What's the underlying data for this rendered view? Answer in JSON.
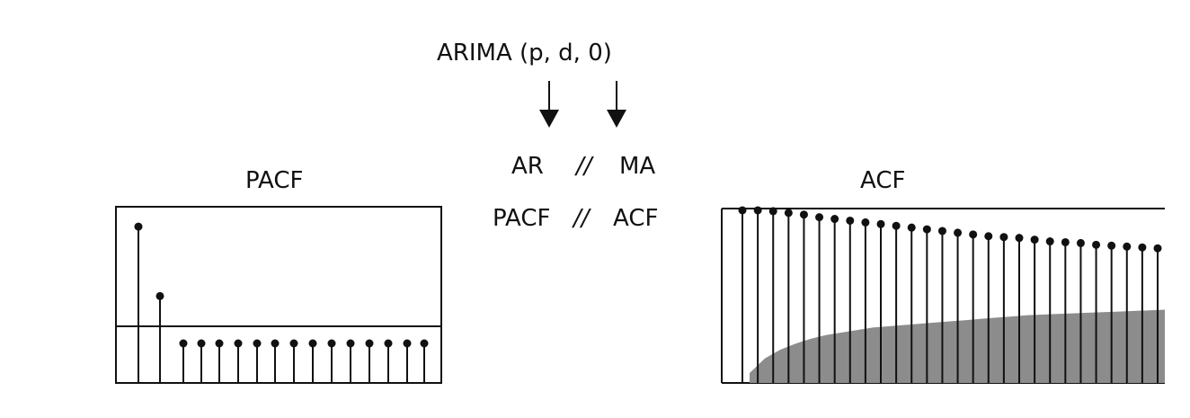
{
  "header": {
    "formula": "ARIMA (p, d, 0)"
  },
  "mapping": {
    "row1": {
      "left": "AR",
      "sep": "//",
      "right": "MA"
    },
    "row2": {
      "left": "PACF",
      "sep": "//",
      "right": "ACF"
    }
  },
  "chart_data": [
    {
      "type": "stem",
      "title": "PACF",
      "lags": [
        1,
        2,
        3,
        4,
        5,
        6,
        7,
        8,
        9,
        10,
        11,
        12,
        13,
        14,
        15
      ],
      "values": [
        0.84,
        0.28,
        -0.03,
        -0.03,
        -0.03,
        -0.03,
        -0.03,
        -0.03,
        -0.03,
        -0.03,
        -0.03,
        -0.03,
        -0.03,
        -0.03,
        -0.03
      ],
      "threshold": 0.0,
      "ylim": [
        -0.42,
        1.0
      ]
    },
    {
      "type": "stem",
      "title": "ACF",
      "lags": [
        1,
        2,
        3,
        4,
        5,
        6,
        7,
        8,
        9,
        10,
        11,
        12,
        13,
        14,
        15,
        16,
        17,
        18,
        19,
        20,
        21,
        22,
        23,
        24,
        25,
        26,
        27,
        28
      ],
      "values": [
        1.0,
        1.0,
        0.995,
        0.985,
        0.975,
        0.96,
        0.95,
        0.94,
        0.93,
        0.92,
        0.91,
        0.9,
        0.89,
        0.88,
        0.87,
        0.86,
        0.85,
        0.845,
        0.84,
        0.83,
        0.82,
        0.815,
        0.81,
        0.8,
        0.795,
        0.79,
        0.785,
        0.78
      ],
      "confidence_band": [
        0.08,
        0.2,
        0.27,
        0.32,
        0.36,
        0.39,
        0.41,
        0.43,
        0.45,
        0.46,
        0.47,
        0.48,
        0.49,
        0.5,
        0.51,
        0.52,
        0.53,
        0.54,
        0.55,
        0.555,
        0.56,
        0.565,
        0.57,
        0.575,
        0.58,
        0.585,
        0.59,
        0.595
      ],
      "ylim": [
        0,
        1.0
      ]
    }
  ]
}
